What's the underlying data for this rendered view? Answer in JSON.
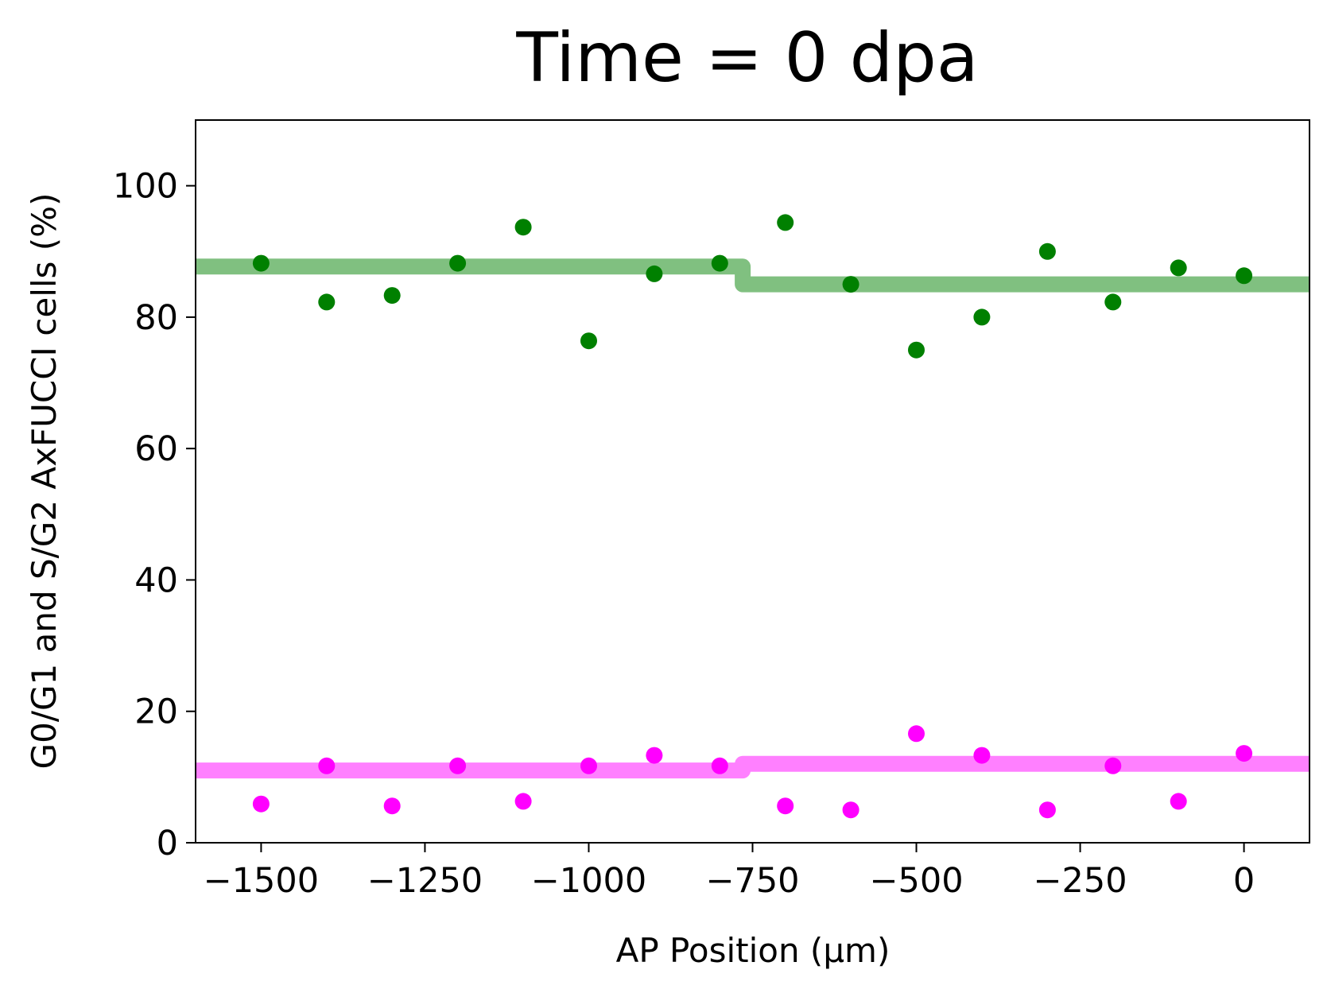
{
  "chart_data": {
    "type": "scatter",
    "title": "Time = 0 dpa",
    "xlabel": "AP Position (μm)",
    "ylabel": "G0/G1 and S/G2 AxFUCCI cells (%)",
    "xlim": [
      -1600,
      100
    ],
    "ylim": [
      0,
      110
    ],
    "xticks": [
      -1500,
      -1250,
      -1000,
      -750,
      -500,
      -250,
      0
    ],
    "xtick_labels": [
      "−1500",
      "−1250",
      "−1000",
      "−750",
      "−500",
      "−250",
      "0"
    ],
    "yticks": [
      0,
      20,
      40,
      60,
      80,
      100
    ],
    "ytick_labels": [
      "0",
      "20",
      "40",
      "60",
      "80",
      "100"
    ],
    "grid": false,
    "series": [
      {
        "color": "#008000",
        "x": [
          -1500,
          -1400,
          -1300,
          -1200,
          -1100,
          -1000,
          -900,
          -800,
          -700,
          -600,
          -500,
          -400,
          -300,
          -200,
          -100,
          0
        ],
        "y": [
          88.2,
          82.3,
          83.3,
          88.2,
          93.7,
          76.4,
          86.6,
          88.2,
          94.4,
          85.0,
          75.0,
          80.0,
          90.0,
          82.3,
          87.5,
          86.3
        ]
      },
      {
        "color": "#ff00ff",
        "x": [
          -1500,
          -1400,
          -1300,
          -1200,
          -1100,
          -1000,
          -900,
          -800,
          -700,
          -600,
          -500,
          -400,
          -300,
          -200,
          -100,
          0
        ],
        "y": [
          5.9,
          11.7,
          5.6,
          11.7,
          6.3,
          11.7,
          13.3,
          11.7,
          5.6,
          5.0,
          16.6,
          13.3,
          5.0,
          11.7,
          6.3,
          13.6
        ]
      }
    ],
    "step_lines": [
      {
        "color": "#80c080",
        "x": [
          -1600,
          -765,
          -765,
          100
        ],
        "y": [
          87.7,
          87.7,
          85.0,
          85.0
        ]
      },
      {
        "color": "#ff80ff",
        "x": [
          -1600,
          -765,
          -765,
          100
        ],
        "y": [
          11.0,
          11.0,
          12.0,
          12.0
        ]
      }
    ]
  }
}
